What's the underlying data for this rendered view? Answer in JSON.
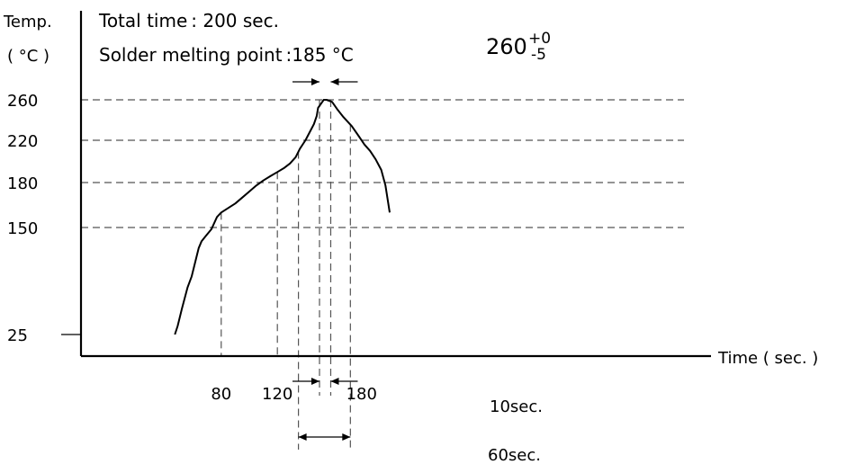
{
  "chart_data": {
    "type": "line",
    "title": "",
    "notes": {
      "total_time": "Total time : 200 sec.",
      "melting_point": "Solder melting point :185 °C"
    },
    "ylabel_line1": "Temp.",
    "ylabel_line2": "( °C )",
    "xlabel": "Time ( sec. )",
    "x_ticks": [
      {
        "value": 80,
        "label": "80"
      },
      {
        "value": 120,
        "label": "120"
      },
      {
        "value": 180,
        "label": "180"
      }
    ],
    "y_ticks": [
      {
        "value": 25,
        "label": "25"
      },
      {
        "value": 150,
        "label": "150"
      },
      {
        "value": 180,
        "label": "180"
      },
      {
        "value": 220,
        "label": "220"
      },
      {
        "value": 260,
        "label": "260"
      }
    ],
    "series": [
      {
        "x": [
          47,
          49,
          52,
          56,
          59,
          62,
          64,
          66,
          69,
          73,
          77,
          80,
          85,
          90,
          95,
          100,
          105,
          110,
          115,
          120,
          125,
          129,
          133,
          136,
          140,
          143,
          146,
          148,
          149,
          152,
          153,
          155,
          159,
          163,
          167,
          173,
          178,
          182,
          186,
          190,
          194,
          197,
          200
        ],
        "y": [
          25,
          35,
          55,
          80,
          93,
          113,
          126,
          134,
          140,
          148,
          157,
          160,
          163,
          166,
          170,
          174,
          178,
          182,
          186,
          190,
          194,
          198,
          204,
          212,
          220,
          228,
          236,
          244,
          252,
          258,
          260,
          260,
          258,
          250,
          243,
          234,
          224,
          216,
          210,
          202,
          192,
          178,
          160
        ]
      }
    ],
    "peak_annotation": {
      "value": "260",
      "tolerance_plus": "+0",
      "tolerance_minus": "-5"
    },
    "dimension_labels": {
      "peak_width": "10sec.",
      "above_220": "60sec."
    },
    "guide_x_values": [
      80,
      120,
      135,
      150,
      158,
      172
    ],
    "xlim": [
      47,
      200
    ],
    "ylim": [
      25,
      260
    ],
    "grid": false
  }
}
